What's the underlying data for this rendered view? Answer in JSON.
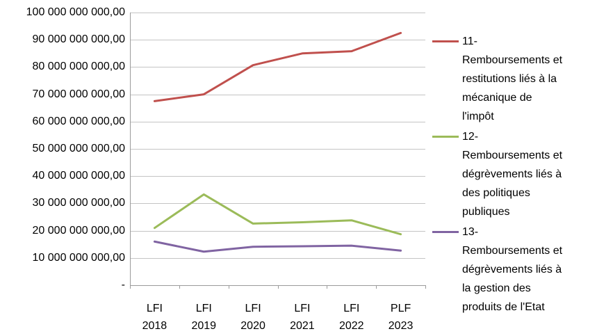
{
  "chart_data": {
    "type": "line",
    "title": "",
    "xlabel": "",
    "ylabel": "",
    "grid": true,
    "legend_position": "right",
    "ylim": [
      0,
      100000000000
    ],
    "categories": [
      "LFI 2018",
      "LFI 2019",
      "LFI 2020",
      "LFI 2021",
      "LFI 2022",
      "PLF 2023"
    ],
    "category_labels": [
      [
        "LFI",
        "2018"
      ],
      [
        "LFI",
        "2019"
      ],
      [
        "LFI",
        "2020"
      ],
      [
        "LFI",
        "2021"
      ],
      [
        "LFI",
        "2022"
      ],
      [
        "PLF",
        "2023"
      ]
    ],
    "y_ticks": [
      "100 000 000 000,00",
      "90 000 000 000,00",
      "80 000 000 000,00",
      "70 000 000 000,00",
      "60 000 000 000,00",
      "50 000 000 000,00",
      "40 000 000 000,00",
      "30 000 000 000,00",
      "20 000 000 000,00",
      "10 000 000 000,00",
      "-"
    ],
    "series": [
      {
        "name": "11-Remboursements et restitutions liés à la mécanique de l'impôt",
        "label_lines": [
          "11-",
          "Remboursements et",
          "restitutions liés à la",
          "mécanique de",
          "l'impôt"
        ],
        "color": "#C0504D",
        "values": [
          67500000000,
          70000000000,
          80700000000,
          85000000000,
          85800000000,
          92500000000
        ]
      },
      {
        "name": "12-Remboursements et dégrèvements liés à des politiques publiques",
        "label_lines": [
          "12-",
          "Remboursements et",
          "dégrèvements liés à",
          "des politiques",
          "publiques"
        ],
        "color": "#9BBB59",
        "values": [
          21000000000,
          33300000000,
          22600000000,
          23100000000,
          23800000000,
          18700000000
        ]
      },
      {
        "name": "13-Remboursements et dégrèvements liés à la gestion des produits de l'Etat",
        "label_lines": [
          "13-",
          "Remboursements et",
          "dégrèvements liés à",
          "la gestion des",
          "produits de l'Etat"
        ],
        "color": "#8064A2",
        "values": [
          16000000000,
          12300000000,
          14100000000,
          14300000000,
          14500000000,
          12700000000
        ]
      }
    ]
  },
  "colors": {
    "grid": "#C4C4C4",
    "axis": "#9B9B9B",
    "text": "#000000",
    "background": "#FFFFFF"
  }
}
